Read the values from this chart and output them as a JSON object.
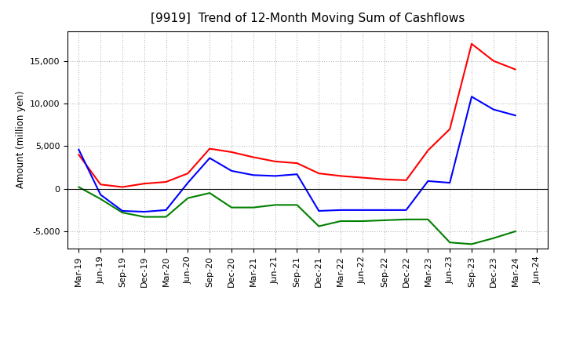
{
  "title": "[9919]  Trend of 12-Month Moving Sum of Cashflows",
  "ylabel": "Amount (million yen)",
  "x_labels": [
    "Mar-19",
    "Jun-19",
    "Sep-19",
    "Dec-19",
    "Mar-20",
    "Jun-20",
    "Sep-20",
    "Dec-20",
    "Mar-21",
    "Jun-21",
    "Sep-21",
    "Dec-21",
    "Mar-22",
    "Jun-22",
    "Sep-22",
    "Dec-22",
    "Mar-23",
    "Jun-23",
    "Sep-23",
    "Dec-23",
    "Mar-24",
    "Jun-24"
  ],
  "operating_cashflow": [
    4000,
    500,
    200,
    600,
    800,
    1800,
    4700,
    4300,
    3700,
    3200,
    3000,
    1800,
    1500,
    1300,
    1100,
    1000,
    4500,
    7000,
    17000,
    15000,
    14000,
    null
  ],
  "investing_cashflow": [
    200,
    -1200,
    -2800,
    -3300,
    -3300,
    -1100,
    -500,
    -2200,
    -2200,
    -1900,
    -1900,
    -4400,
    -3800,
    -3800,
    -3700,
    -3600,
    -3600,
    -6300,
    -6500,
    -5800,
    -5000,
    null
  ],
  "free_cashflow": [
    4600,
    -700,
    -2600,
    -2700,
    -2500,
    700,
    3600,
    2100,
    1600,
    1500,
    1700,
    -2600,
    -2500,
    -2500,
    -2500,
    -2500,
    900,
    700,
    10800,
    9300,
    8600,
    null
  ],
  "operating_color": "#FF0000",
  "investing_color": "#008000",
  "free_color": "#0000FF",
  "ylim": [
    -7000,
    18500
  ],
  "yticks": [
    -5000,
    0,
    5000,
    10000,
    15000
  ],
  "background_color": "#FFFFFF",
  "grid_color": "#AAAAAA",
  "title_fontsize": 11,
  "label_fontsize": 8.5,
  "tick_fontsize": 8,
  "legend_fontsize": 9
}
